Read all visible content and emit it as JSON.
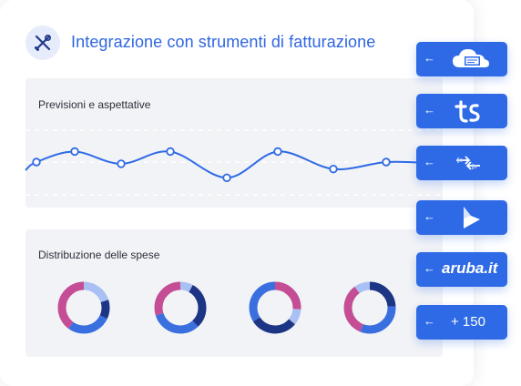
{
  "header": {
    "title": "Integrazione con strumenti di fatturazione",
    "icon": "tools-icon"
  },
  "forecast_panel": {
    "label": "Previsioni e aspettative"
  },
  "spend_panel": {
    "label": "Distribuzione delle spese"
  },
  "colors": {
    "accent": "#2f6ae6",
    "title_blue": "#2f66e0",
    "donut_pink": "#c44d95",
    "donut_light": "#a9c0f4",
    "donut_mid": "#3a6fe0",
    "donut_navy": "#1c3585"
  },
  "integrations": [
    {
      "logo": "cloud-invoice-logo",
      "label": ""
    },
    {
      "logo": "ts-logo",
      "label": ""
    },
    {
      "logo": "sync-arrows-logo",
      "label": ""
    },
    {
      "logo": "dynamics-logo",
      "label": ""
    },
    {
      "logo": "aruba-logo",
      "label": "aruba.it"
    },
    {
      "logo": "",
      "label": "+ 150"
    }
  ],
  "chart_data": [
    {
      "type": "line",
      "title": "Previsioni e aspettative",
      "x": [
        1,
        2,
        3,
        4,
        5,
        6,
        7,
        8
      ],
      "values": [
        5.0,
        6.2,
        4.8,
        6.2,
        3.2,
        6.2,
        4.2,
        5.0
      ],
      "ylim": [
        0,
        10
      ],
      "grid": true
    },
    {
      "type": "pie",
      "title": "Distribuzione delle spese",
      "charts": [
        {
          "slices": [
            {
              "color": "#a9c0f4",
              "value": 20
            },
            {
              "color": "#1c3585",
              "value": 12
            },
            {
              "color": "#3a6fe0",
              "value": 28
            },
            {
              "color": "#c44d95",
              "value": 40
            }
          ]
        },
        {
          "slices": [
            {
              "color": "#a9c0f4",
              "value": 8
            },
            {
              "color": "#1c3585",
              "value": 30
            },
            {
              "color": "#3a6fe0",
              "value": 32
            },
            {
              "color": "#c44d95",
              "value": 30
            }
          ]
        },
        {
          "slices": [
            {
              "color": "#c44d95",
              "value": 26
            },
            {
              "color": "#a9c0f4",
              "value": 10
            },
            {
              "color": "#1c3585",
              "value": 30
            },
            {
              "color": "#3a6fe0",
              "value": 34
            }
          ]
        },
        {
          "slices": [
            {
              "color": "#1c3585",
              "value": 24
            },
            {
              "color": "#3a6fe0",
              "value": 32
            },
            {
              "color": "#c44d95",
              "value": 34
            },
            {
              "color": "#a9c0f4",
              "value": 10
            }
          ]
        }
      ]
    }
  ]
}
